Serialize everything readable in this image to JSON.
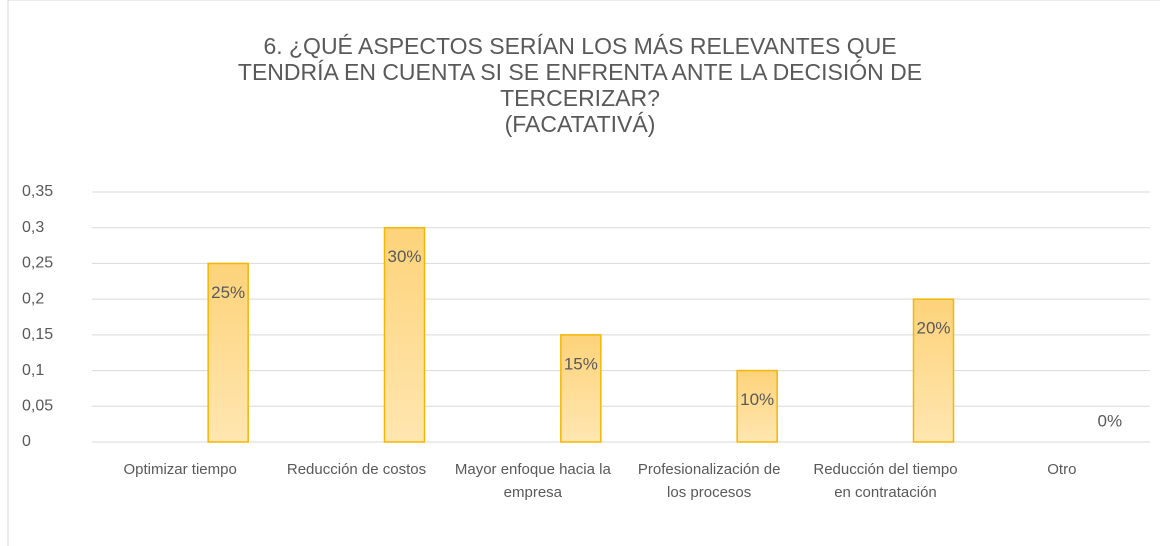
{
  "chart_data": {
    "type": "bar",
    "title": [
      "6.  ¿QUÉ ASPECTOS SERÍAN LOS MÁS RELEVANTES QUE",
      "TENDRÍA EN CUENTA SI SE ENFRENTA ANTE LA DECISIÓN DE",
      "TERCERIZAR?",
      "(FACATATIVÁ)"
    ],
    "categories": [
      "Optimizar tiempo",
      "Reducción de costos",
      "Mayor enfoque hacia la empresa",
      "Profesionalización de los procesos",
      "Reducción del tiempo en contratación",
      "Otro"
    ],
    "values": [
      0.25,
      0.3,
      0.15,
      0.1,
      0.2,
      0
    ],
    "value_labels": [
      "25%",
      "30%",
      "15%",
      "10%",
      "20%",
      "0%"
    ],
    "color": "#fdd98c",
    "ylim": [
      0,
      0.35
    ],
    "yticks": [
      0,
      {
        "value": 0.05,
        "label": "0,05"
      },
      {
        "value": 0.1,
        "label": "0,1"
      },
      {
        "value": 0.15,
        "label": "0,15"
      },
      {
        "value": 0.2,
        "label": "0,2"
      },
      {
        "value": 0.25,
        "label": "0,25"
      },
      {
        "value": 0.3,
        "label": "0,3"
      },
      {
        "value": 0.35,
        "label": "0,35"
      }
    ],
    "grid": true
  }
}
